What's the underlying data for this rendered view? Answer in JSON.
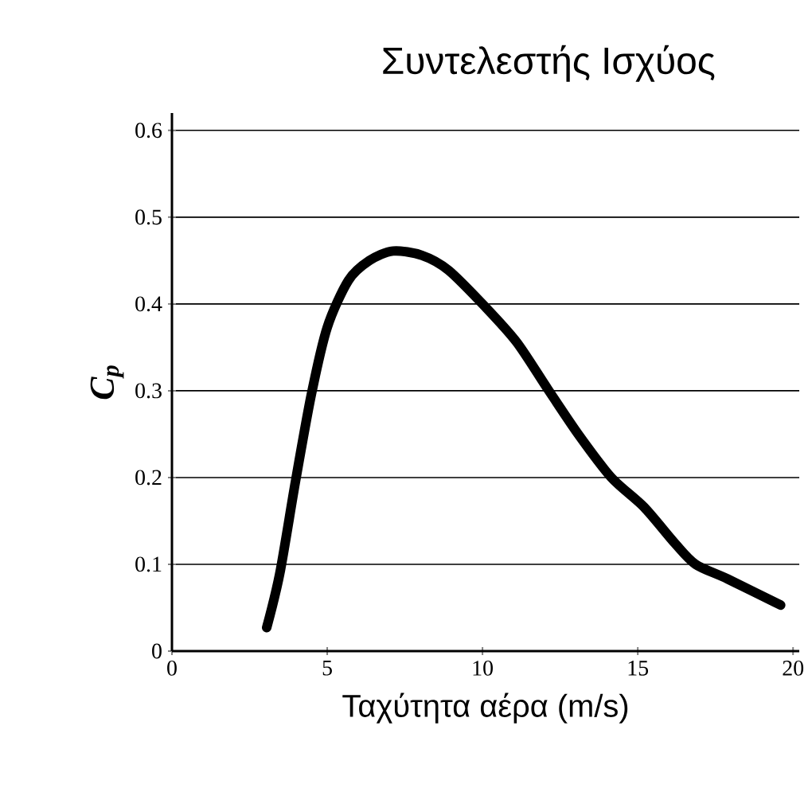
{
  "chart_data": {
    "type": "line",
    "title": "Συντελεστής Ισχύος",
    "xlabel": "Ταχύτητα αέρα (m/s)",
    "ylabel": "C$_{p}$",
    "x": [
      3.05,
      3.47,
      3.98,
      4.49,
      5.0,
      5.68,
      6.36,
      7.12,
      8.05,
      8.9,
      10.08,
      11.1,
      12.1,
      13.1,
      14.15,
      15.2,
      16.2,
      16.86,
      17.9,
      19.6
    ],
    "series": [
      {
        "color": "#000000",
        "values": [
          0.027,
          0.089,
          0.196,
          0.296,
          0.373,
          0.427,
          0.45,
          0.461,
          0.456,
          0.439,
          0.397,
          0.356,
          0.302,
          0.249,
          0.2,
          0.166,
          0.124,
          0.1,
          0.083,
          0.053
        ]
      }
    ],
    "xlim": [
      0,
      20.2
    ],
    "ylim": [
      0,
      0.62
    ],
    "xticks": [
      0,
      5,
      10,
      15,
      20
    ],
    "yticks": [
      0,
      0.1,
      0.2,
      0.3,
      0.4,
      0.5,
      0.6
    ],
    "grid": "y",
    "marker": "none",
    "line_style": "solid"
  }
}
